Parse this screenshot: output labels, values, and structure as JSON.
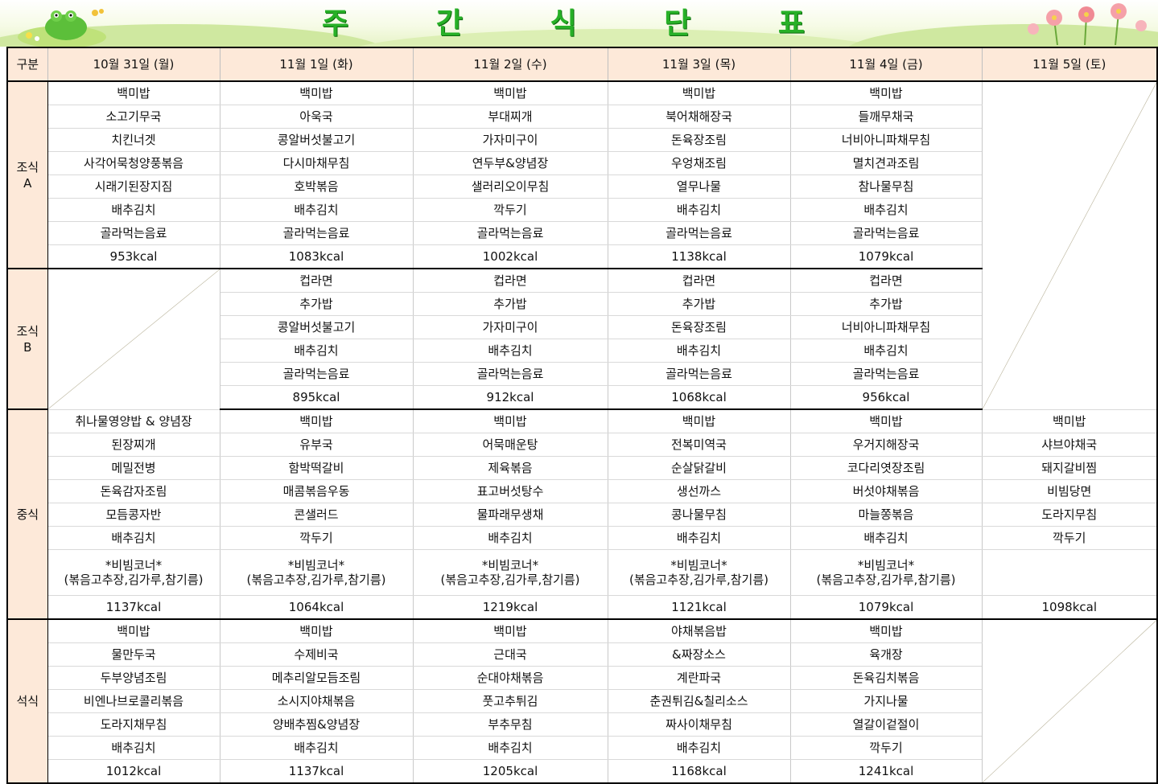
{
  "title": [
    "주",
    "간",
    "식",
    "단",
    "표"
  ],
  "header": {
    "corner": "구분",
    "days": [
      "10월 31일 (월)",
      "11월 1일 (화)",
      "11월 2일 (수)",
      "11월 3일 (목)",
      "11월 4일 (금)",
      "11월 5일 (토)"
    ]
  },
  "breakfast_a": {
    "label": "조식\nA",
    "days": [
      [
        "백미밥",
        "소고기무국",
        "치킨너겟",
        "사각어묵청양풍볶음",
        "시래기된장지짐",
        "배추김치",
        "골라먹는음료",
        "953kcal"
      ],
      [
        "백미밥",
        "아욱국",
        "콩알버섯불고기",
        "다시마채무침",
        "호박볶음",
        "배추김치",
        "골라먹는음료",
        "1083kcal"
      ],
      [
        "백미밥",
        "부대찌개",
        "가자미구이",
        "연두부&양념장",
        "샐러리오이무침",
        "깍두기",
        "골라먹는음료",
        "1002kcal"
      ],
      [
        "백미밥",
        "북어채해장국",
        "돈육장조림",
        "우엉채조림",
        "열무나물",
        "배추김치",
        "골라먹는음료",
        "1138kcal"
      ],
      [
        "백미밥",
        "들깨무채국",
        "너비아니파채무침",
        "멸치견과조림",
        "참나물무침",
        "배추김치",
        "골라먹는음료",
        "1079kcal"
      ]
    ]
  },
  "breakfast_b": {
    "label": "조식\nB",
    "days": [
      [
        "컵라면",
        "추가밥",
        "콩알버섯불고기",
        "배추김치",
        "골라먹는음료",
        "895kcal"
      ],
      [
        "컵라면",
        "추가밥",
        "가자미구이",
        "배추김치",
        "골라먹는음료",
        "912kcal"
      ],
      [
        "컵라면",
        "추가밥",
        "돈육장조림",
        "배추김치",
        "골라먹는음료",
        "1068kcal"
      ],
      [
        "컵라면",
        "추가밥",
        "너비아니파채무침",
        "배추김치",
        "골라먹는음료",
        "956kcal"
      ]
    ]
  },
  "lunch": {
    "label": "중식",
    "days": [
      [
        "취나물영양밥 & 양념장",
        "된장찌개",
        "메밀전병",
        "돈육감자조림",
        "모듬콩자반",
        "배추김치",
        "*비빔코너*\n(볶음고추장,김가루,참기름)",
        "1137kcal"
      ],
      [
        "백미밥",
        "유부국",
        "함박떡갈비",
        "매콤볶음우동",
        "콘샐러드",
        "깍두기",
        "*비빔코너*\n(볶음고추장,김가루,참기름)",
        "1064kcal"
      ],
      [
        "백미밥",
        "어묵매운탕",
        "제육볶음",
        "표고버섯탕수",
        "물파래무생채",
        "배추김치",
        "*비빔코너*\n(볶음고추장,김가루,참기름)",
        "1219kcal"
      ],
      [
        "백미밥",
        "전복미역국",
        "순살닭갈비",
        "생선까스",
        "콩나물무침",
        "배추김치",
        "*비빔코너*\n(볶음고추장,김가루,참기름)",
        "1121kcal"
      ],
      [
        "백미밥",
        "우거지해장국",
        "코다리엿장조림",
        "버섯야채볶음",
        "마늘쫑볶음",
        "배추김치",
        "*비빔코너*\n(볶음고추장,김가루,참기름)",
        "1079kcal"
      ],
      [
        "백미밥",
        "샤브야채국",
        "돼지갈비찜",
        "비빔당면",
        "도라지무침",
        "깍두기",
        "",
        "1098kcal"
      ]
    ]
  },
  "dinner": {
    "label": "석식",
    "days": [
      [
        "백미밥",
        "물만두국",
        "두부양념조림",
        "비엔나브로콜리볶음",
        "도라지채무침",
        "배추김치",
        "1012kcal"
      ],
      [
        "백미밥",
        "수제비국",
        "메추리알모듬조림",
        "소시지야채볶음",
        "양배추찜&양념장",
        "배추김치",
        "1137kcal"
      ],
      [
        "백미밥",
        "근대국",
        "순대야채볶음",
        "풋고추튀김",
        "부추무침",
        "배추김치",
        "1205kcal"
      ],
      [
        "야채볶음밥",
        "&짜장소스",
        "계란파국",
        "춘권튀김&칠리소스",
        "짜사이채무침",
        "배추김치",
        "1168kcal"
      ],
      [
        "백미밥",
        "육개장",
        "돈육김치볶음",
        "가지나물",
        "열갈이겉절이",
        "깍두기",
        "1241kcal"
      ]
    ]
  }
}
